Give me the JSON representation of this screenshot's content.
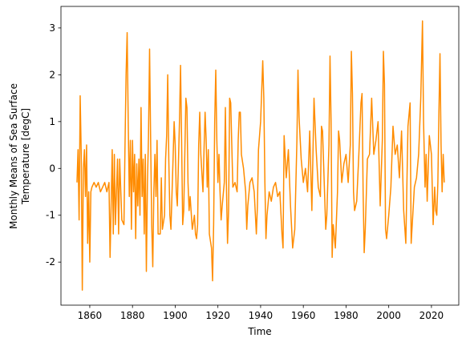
{
  "chart_data": {
    "type": "line",
    "xlabel": "Time",
    "ylabel": [
      "Monthly Means of Sea Surface",
      "Temperature [degC]"
    ],
    "x": [
      1854,
      1854.5,
      1855,
      1855.5,
      1856,
      1856.5,
      1857,
      1857.5,
      1858,
      1858.5,
      1859,
      1859.5,
      1860,
      1860.5,
      1861,
      1862,
      1863,
      1864,
      1865,
      1866,
      1867,
      1868,
      1869,
      1869.5,
      1870,
      1870.5,
      1871,
      1871.5,
      1872,
      1873,
      1873.5,
      1874,
      1875,
      1876,
      1876.5,
      1877,
      1877.5,
      1878,
      1878.5,
      1879,
      1879.5,
      1880,
      1880.5,
      1881,
      1881.5,
      1882,
      1882.5,
      1883,
      1883.5,
      1884,
      1884.5,
      1885,
      1885.5,
      1886,
      1886.5,
      1887,
      1887.5,
      1888,
      1888.5,
      1889,
      1889.5,
      1890,
      1890.5,
      1891,
      1891.5,
      1892,
      1893,
      1893.5,
      1894,
      1895,
      1895.5,
      1896,
      1896.5,
      1897,
      1897.5,
      1898,
      1899,
      1899.5,
      1900,
      1900.5,
      1901,
      1902,
      1902.5,
      1903,
      1903.5,
      1904,
      1904.5,
      1905,
      1905.5,
      1906,
      1906.5,
      1907,
      1908,
      1909,
      1909.5,
      1910,
      1910.5,
      1911,
      1911.5,
      1912,
      1913,
      1913.5,
      1914,
      1914.5,
      1915,
      1915.5,
      1916,
      1917,
      1917.5,
      1918,
      1918.5,
      1919,
      1919.5,
      1920,
      1920.5,
      1921,
      1921.5,
      1922,
      1923,
      1923.5,
      1924,
      1924.5,
      1925,
      1925.5,
      1926,
      1926.5,
      1927,
      1928,
      1929,
      1929.5,
      1930,
      1930.5,
      1931,
      1932,
      1933,
      1933.5,
      1934,
      1935,
      1936,
      1937,
      1938,
      1938.5,
      1939,
      1940,
      1941,
      1941.5,
      1942,
      1942.5,
      1943,
      1944,
      1945,
      1946,
      1947,
      1948,
      1949,
      1950,
      1950.5,
      1951,
      1952,
      1953,
      1954,
      1955,
      1956,
      1957,
      1957.5,
      1958,
      1959,
      1960,
      1961,
      1962,
      1963,
      1964,
      1965,
      1966,
      1967,
      1968,
      1968.5,
      1969,
      1970,
      1970.5,
      1971,
      1972,
      1972.5,
      1973,
      1973.5,
      1974,
      1975,
      1976,
      1976.5,
      1977,
      1978,
      1979,
      1980,
      1981,
      1982,
      1982.5,
      1983,
      1983.5,
      1984,
      1985,
      1986,
      1987,
      1987.5,
      1988,
      1988.5,
      1989,
      1990,
      1991,
      1992,
      1993,
      1994,
      1995,
      1996,
      1997,
      1997.5,
      1998,
      1998.5,
      1999,
      2000,
      2001,
      2002,
      2003,
      2004,
      2005,
      2006,
      2007,
      2008,
      2009,
      2010,
      2010.5,
      2011,
      2012,
      2013,
      2014,
      2015,
      2015.8,
      2016.3,
      2017,
      2017.5,
      2018,
      2019,
      2020,
      2020.8,
      2021.5,
      2022,
      2022.5,
      2023,
      2023.5,
      2024,
      2024.5,
      2025,
      2025.5,
      2026
    ],
    "series": [
      {
        "color": "#ff8c00",
        "values": [
          -0.3,
          0.4,
          -1.1,
          1.55,
          0.3,
          -2.6,
          0.0,
          0.4,
          -0.6,
          0.5,
          -1.6,
          -0.5,
          -2.0,
          -0.5,
          -0.4,
          -0.3,
          -0.4,
          -0.3,
          -0.5,
          -0.4,
          -0.3,
          -0.5,
          -0.3,
          -1.9,
          -0.8,
          0.4,
          -1.4,
          0.3,
          -1.2,
          0.2,
          -1.4,
          0.2,
          -1.1,
          -1.2,
          0.5,
          2.0,
          2.9,
          1.0,
          -0.6,
          0.6,
          -1.3,
          0.6,
          -0.5,
          0.3,
          -1.5,
          0.1,
          -0.8,
          0.2,
          -1.0,
          1.3,
          -0.6,
          0.2,
          -1.4,
          0.3,
          -2.2,
          -0.3,
          0.7,
          2.55,
          0.6,
          -1.2,
          -2.1,
          -0.5,
          0.3,
          -0.6,
          0.6,
          -1.4,
          -1.4,
          -0.2,
          -1.3,
          -1.0,
          0.2,
          0.7,
          2.0,
          0.2,
          -1.0,
          -1.3,
          0.2,
          1.0,
          0.5,
          -0.5,
          -0.8,
          1.0,
          2.2,
          0.6,
          -1.2,
          -0.9,
          0.3,
          1.5,
          1.3,
          -0.3,
          -0.9,
          -0.6,
          -1.3,
          -1.0,
          -1.4,
          -1.5,
          -1.2,
          0.5,
          1.2,
          0.3,
          -0.5,
          0.4,
          1.2,
          0.6,
          -0.4,
          0.4,
          -1.4,
          -1.7,
          -2.4,
          -1.2,
          1.0,
          2.1,
          0.6,
          -0.3,
          0.3,
          -0.5,
          -1.1,
          -0.8,
          -0.3,
          1.3,
          -0.4,
          -1.6,
          -0.9,
          1.5,
          1.4,
          0.5,
          -0.4,
          -0.3,
          -0.5,
          0.6,
          1.2,
          1.2,
          0.3,
          0.0,
          -0.5,
          -1.3,
          -0.8,
          -0.3,
          -0.2,
          -0.5,
          -1.4,
          -0.8,
          0.4,
          1.0,
          2.3,
          1.5,
          -0.3,
          -1.5,
          -1.0,
          -0.5,
          -0.7,
          -0.4,
          -0.3,
          -0.6,
          -0.5,
          -1.4,
          -1.7,
          0.7,
          -0.2,
          0.4,
          -0.8,
          -1.7,
          -1.3,
          0.6,
          2.1,
          1.1,
          0.2,
          -0.3,
          0.0,
          -0.5,
          0.8,
          -0.9,
          1.5,
          0.4,
          -0.4,
          -0.6,
          0.9,
          0.8,
          -0.6,
          -1.3,
          -1.0,
          0.5,
          2.4,
          1.0,
          -1.9,
          -1.2,
          -1.7,
          -0.5,
          0.8,
          0.6,
          -0.3,
          0.1,
          0.3,
          -0.3,
          0.5,
          2.5,
          1.6,
          -0.5,
          -0.9,
          -0.7,
          0.3,
          1.4,
          1.6,
          -0.5,
          -1.8,
          -1.3,
          0.2,
          0.3,
          1.5,
          0.3,
          0.6,
          1.0,
          -0.8,
          0.6,
          2.5,
          1.8,
          -1.3,
          -1.5,
          -1.0,
          -0.4,
          0.9,
          0.3,
          0.5,
          -0.2,
          0.8,
          -0.9,
          -1.6,
          0.9,
          1.4,
          -1.6,
          -1.2,
          -0.4,
          -0.2,
          0.3,
          1.5,
          3.15,
          1.0,
          -0.4,
          0.3,
          -0.7,
          0.7,
          0.3,
          -1.2,
          -0.4,
          -0.9,
          -1.0,
          -0.3,
          1.2,
          2.45,
          0.5,
          -0.5,
          0.3,
          -0.3
        ]
      }
    ],
    "xlim": [
      1846.5,
      2032.8
    ],
    "ylim": [
      -2.92,
      3.46
    ],
    "xticks": [
      1860,
      1880,
      1900,
      1920,
      1940,
      1960,
      1980,
      2000,
      2020
    ],
    "yticks": [
      -2,
      -1,
      0,
      1,
      2,
      3
    ]
  }
}
